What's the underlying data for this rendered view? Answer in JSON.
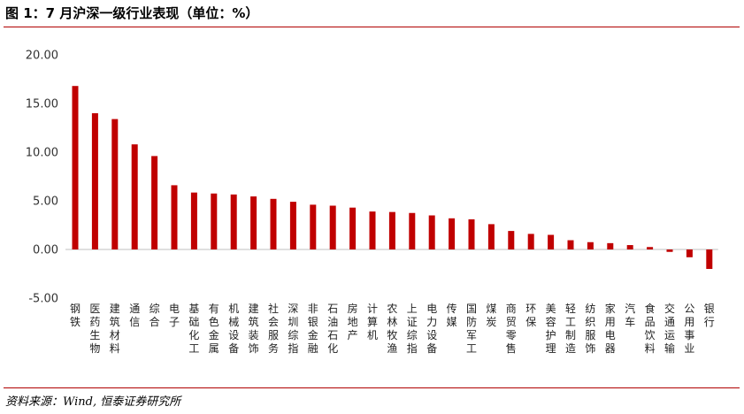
{
  "header": {
    "title": "图 1：7 月沪深一级行业表现（单位：%）"
  },
  "footer": {
    "source": "资料来源：Wind, 恒泰证券研究所"
  },
  "chart_data": {
    "type": "bar",
    "title": "图 1：7 月沪深一级行业表现（单位：%）",
    "ylim": [
      -5,
      20
    ],
    "yticks": [
      20,
      15,
      10,
      5,
      0,
      -5
    ],
    "ytick_labels": [
      "20.00",
      "15.00",
      "10.00",
      "5.00",
      "0.00",
      "-5.00"
    ],
    "grid": false,
    "bar_color": "#c00000",
    "categories": [
      "钢铁",
      "医药生物",
      "建筑材料",
      "通信",
      "综合",
      "电子",
      "基础化工",
      "有色金属",
      "机械设备",
      "建筑装饰",
      "社会服务",
      "深圳综指",
      "非银金融",
      "石油石化",
      "房地产",
      "计算机",
      "农林牧渔",
      "上证综指",
      "电力设备",
      "传媒",
      "国防军工",
      "煤炭",
      "商贸零售",
      "环保",
      "美容护理",
      "轻工制造",
      "纺织服饰",
      "家用电器",
      "汽车",
      "食品饮料",
      "交通运输",
      "公用事业",
      "银行"
    ],
    "values": [
      16.8,
      14.0,
      13.4,
      10.8,
      9.6,
      6.6,
      5.85,
      5.75,
      5.65,
      5.45,
      5.2,
      4.9,
      4.6,
      4.5,
      4.3,
      3.9,
      3.85,
      3.75,
      3.5,
      3.2,
      3.1,
      2.6,
      1.9,
      1.6,
      1.5,
      0.95,
      0.75,
      0.65,
      0.45,
      0.25,
      -0.25,
      -0.8,
      -2.0
    ]
  }
}
